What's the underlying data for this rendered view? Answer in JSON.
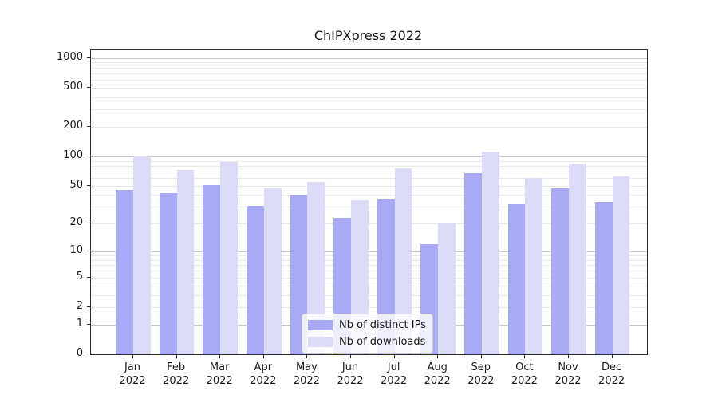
{
  "title": "ChIPXpress 2022",
  "chart_data": {
    "type": "bar",
    "title": "ChIPXpress 2022",
    "categories": [
      "Jan 2022",
      "Feb 2022",
      "Mar 2022",
      "Apr 2022",
      "May 2022",
      "Jun 2022",
      "Jul 2022",
      "Aug 2022",
      "Sep 2022",
      "Oct 2022",
      "Nov 2022",
      "Dec 2022"
    ],
    "series": [
      {
        "name": "Nb of distinct IPs",
        "color": "#a9a9f5",
        "values": [
          45,
          42,
          51,
          31,
          40,
          23,
          36,
          12,
          67,
          32,
          47,
          34
        ]
      },
      {
        "name": "Nb of downloads",
        "color": "#dcdcf8",
        "values": [
          100,
          73,
          88,
          47,
          55,
          35,
          75,
          20,
          112,
          60,
          85,
          63
        ]
      }
    ],
    "xlabel": "",
    "ylabel": "",
    "y_scale": "log1p",
    "y_ticks": [
      0,
      1,
      2,
      5,
      10,
      20,
      50,
      100,
      200,
      500,
      1000
    ],
    "y_major_gridlines": [
      1,
      10,
      100,
      1000
    ],
    "ylim": [
      0,
      1200
    ],
    "grid": "both",
    "legend_position": "lower center"
  },
  "legend": {
    "items": [
      {
        "label": "Nb of distinct IPs",
        "color": "#a9a9f5"
      },
      {
        "label": "Nb of downloads",
        "color": "#dcdcf8"
      }
    ]
  },
  "colors": {
    "distinct_ips": "#a9a9f5",
    "downloads": "#dcdcf8",
    "grid_major": "#c8c8c8",
    "grid_minor": "#eaeaea",
    "spine": "#2b2b2b",
    "text": "#1a1a1a"
  }
}
